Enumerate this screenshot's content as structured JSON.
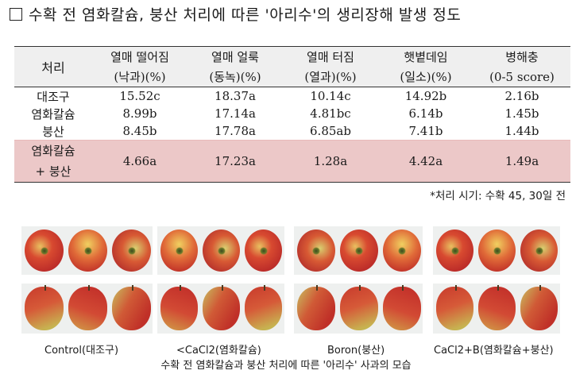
{
  "title": "수확 전 염화칼슘, 붕산 처리에 따른 '아리수'의 생리장해 발생 정도",
  "table": {
    "header": {
      "treatment": "처리",
      "columns": [
        {
          "line1": "열매 떨어짐",
          "line2": "(낙과)(%)"
        },
        {
          "line1": "열매 얼룩",
          "line2": "(동녹)(%)"
        },
        {
          "line1": "열매 터짐",
          "line2": "(열과)(%)"
        },
        {
          "line1": "햇볕데임",
          "line2": "(일소)(%)"
        },
        {
          "line1": "병해충",
          "line2": "(0-5 score)"
        }
      ]
    },
    "rows": [
      {
        "name": "대조구",
        "values": [
          "15.52c",
          "18.37a",
          "10.14c",
          "14.92b",
          "2.16b"
        ]
      },
      {
        "name": "염화칼슘",
        "values": [
          "8.99b",
          "17.14a",
          "4.81bc",
          "6.14b",
          "1.45b"
        ]
      },
      {
        "name": "붕산",
        "values": [
          "8.45b",
          "17.78a",
          "6.85ab",
          "7.41b",
          "1.44b"
        ]
      },
      {
        "name_line1": "염화칼슘",
        "name_line2": "+ 붕산",
        "values": [
          "4.66a",
          "17.23a",
          "1.28a",
          "4.42a",
          "1.49a"
        ]
      }
    ],
    "highlight_color": "#ecc8c8",
    "header_color": "#efefef"
  },
  "note": "*처리 시기: 수확 45, 30일 전",
  "photos": {
    "panels": [
      {
        "label": "Control(대조구)"
      },
      {
        "label": "<CaCl2(염화칼슘)"
      },
      {
        "label": "Boron(붕산)"
      },
      {
        "label": "CaCl2+B(염화칼슘+붕산)"
      }
    ],
    "caption": "수확 전 염화칼슘과 붕산 처리에 따른 '아리수' 사과의 모습"
  }
}
